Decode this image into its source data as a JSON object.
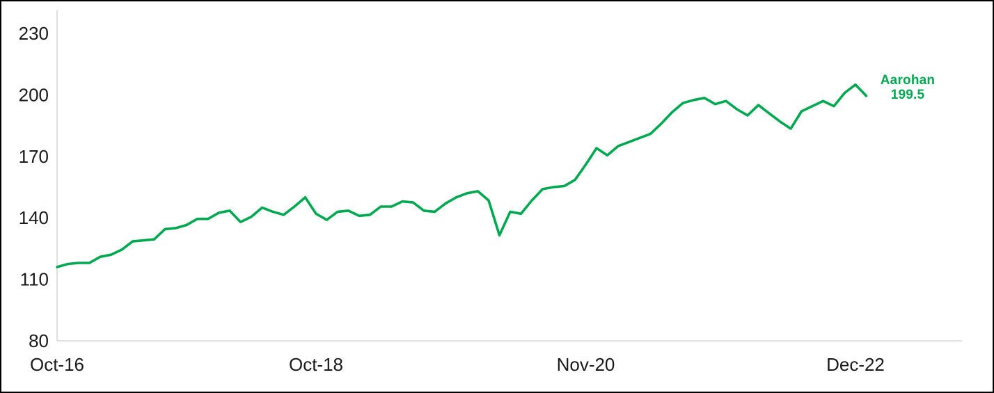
{
  "chart_data": {
    "type": "line",
    "title": "",
    "xlabel": "",
    "ylabel": "",
    "grid": "off",
    "legend_position": "end-of-line",
    "background": "#ffffff",
    "axis_color": "#d9d9d9",
    "tick_label_color": "#1a1a1a",
    "ylim": [
      80,
      240
    ],
    "y_ticks": [
      80,
      110,
      140,
      170,
      200,
      230
    ],
    "x_tick_labels": [
      "Oct-16",
      "Oct-18",
      "Nov-20",
      "Dec-22"
    ],
    "x_tick_indices": [
      0,
      24,
      49,
      74
    ],
    "x_frequency": "monthly",
    "x_range": [
      "Oct-16",
      "Jan-23"
    ],
    "series": [
      {
        "name": "Aarohan",
        "color": "#00a950",
        "last_value": 199.5,
        "values": [
          116,
          117.5,
          118,
          118,
          121,
          122,
          124.5,
          128.5,
          129,
          129.5,
          134.5,
          135,
          136.5,
          139.5,
          139.5,
          142.5,
          143.5,
          138,
          140.5,
          145,
          143,
          141.5,
          145.5,
          150,
          142,
          139,
          143,
          143.5,
          141,
          141.5,
          145.5,
          145.5,
          148,
          147.5,
          143.5,
          143,
          147,
          150,
          152,
          153,
          148.5,
          131.5,
          143,
          142,
          148.5,
          154,
          155,
          155.5,
          158.5,
          166,
          174,
          170.5,
          175,
          177,
          179,
          181,
          186,
          191.5,
          196,
          197.5,
          198.5,
          195.5,
          197,
          193,
          190,
          195,
          191,
          187,
          183.5,
          192,
          194.5,
          197,
          194.5,
          201,
          205,
          199.5
        ]
      }
    ],
    "end_annotation": {
      "line1": "Aarohan",
      "line2": "199.5",
      "color": "#00a950"
    }
  }
}
